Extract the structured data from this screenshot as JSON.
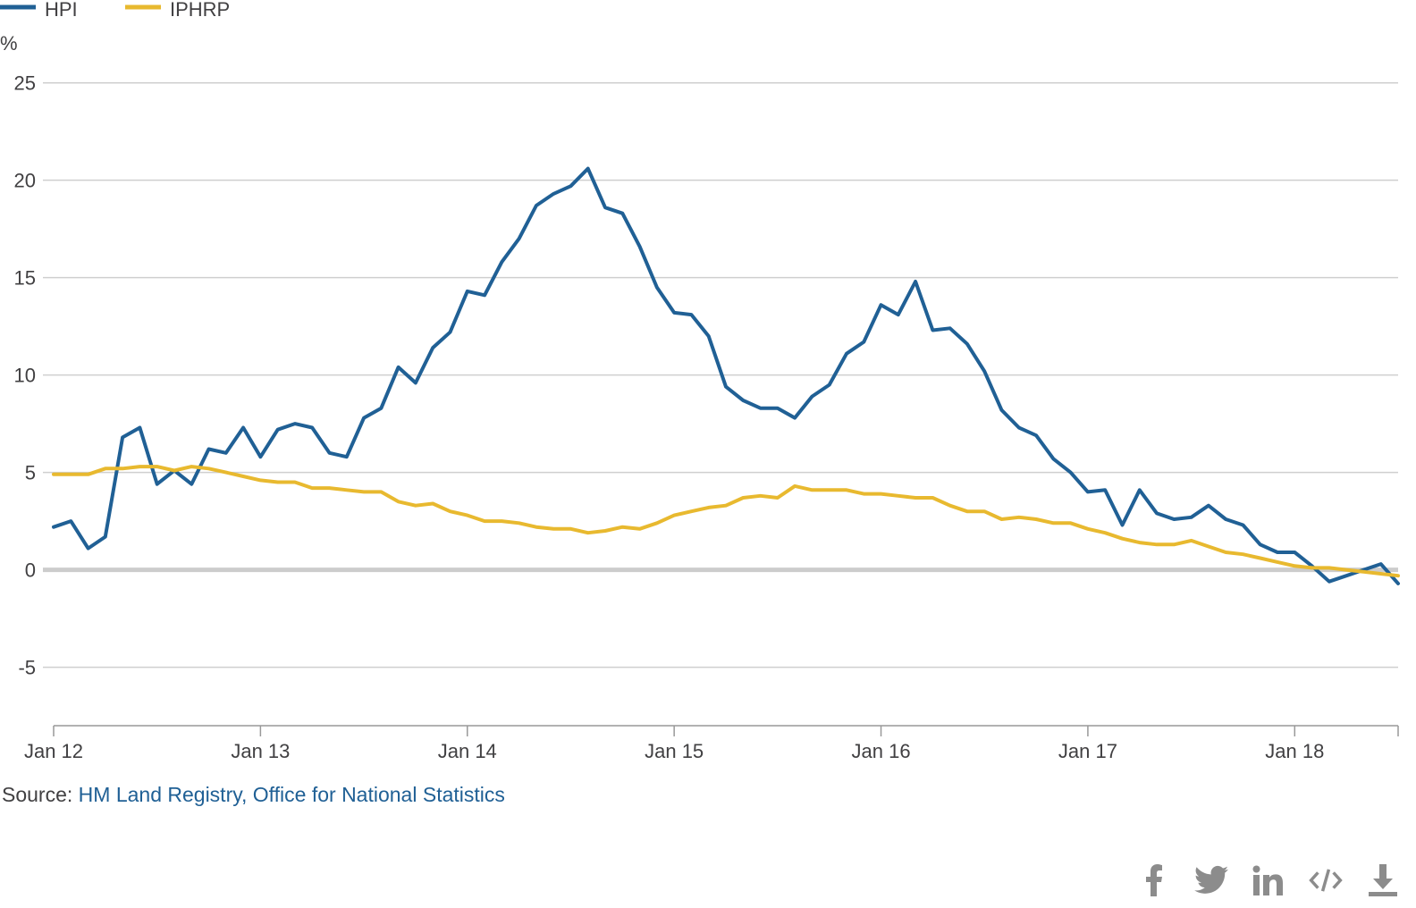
{
  "chart_data": {
    "type": "line",
    "y_unit_label": "%",
    "ylim": [
      -8,
      26.5
    ],
    "y_ticks": [
      -5,
      0,
      5,
      10,
      15,
      20,
      25
    ],
    "y_tick_labels": [
      "-5",
      "0",
      "5",
      "10",
      "15",
      "20",
      "25"
    ],
    "x_ticks": [
      0,
      12,
      24,
      36,
      48,
      60,
      72
    ],
    "x_tick_labels": [
      "Jan 12",
      "Jan 13",
      "Jan 14",
      "Jan 15",
      "Jan 16",
      "Jan 17",
      "Jan 18"
    ],
    "x_range_months": [
      0,
      78
    ],
    "x_start": "Jan 2012",
    "grid": true,
    "legend_position": "top-left",
    "series": [
      {
        "name": "HPI",
        "color": "#206095",
        "values": [
          2.2,
          2.5,
          1.1,
          1.7,
          6.8,
          7.3,
          4.4,
          5.1,
          4.4,
          6.2,
          6.0,
          7.3,
          5.8,
          7.2,
          7.5,
          7.3,
          6.0,
          5.8,
          7.8,
          8.3,
          10.4,
          9.6,
          11.4,
          12.2,
          14.3,
          14.1,
          15.8,
          17.0,
          18.7,
          19.3,
          19.7,
          20.6,
          18.6,
          18.3,
          16.6,
          14.5,
          13.2,
          13.1,
          12.0,
          9.4,
          8.7,
          8.3,
          8.3,
          7.8,
          8.9,
          9.5,
          11.1,
          11.7,
          13.6,
          13.1,
          14.8,
          12.3,
          12.4,
          11.6,
          10.2,
          8.2,
          7.3,
          6.9,
          5.7,
          5.0,
          4.0,
          4.1,
          2.3,
          4.1,
          2.9,
          2.6,
          2.7,
          3.3,
          2.6,
          2.3,
          1.3,
          0.9,
          0.9,
          0.2,
          -0.6,
          -0.3,
          0.0,
          0.3,
          -0.7
        ]
      },
      {
        "name": "IPHRP",
        "color": "#e8b92f",
        "values": [
          4.9,
          4.9,
          4.9,
          5.2,
          5.2,
          5.3,
          5.3,
          5.1,
          5.3,
          5.2,
          5.0,
          4.8,
          4.6,
          4.5,
          4.5,
          4.2,
          4.2,
          4.1,
          4.0,
          4.0,
          3.5,
          3.3,
          3.4,
          3.0,
          2.8,
          2.5,
          2.5,
          2.4,
          2.2,
          2.1,
          2.1,
          1.9,
          2.0,
          2.2,
          2.1,
          2.4,
          2.8,
          3.0,
          3.2,
          3.3,
          3.7,
          3.8,
          3.7,
          4.3,
          4.1,
          4.1,
          4.1,
          3.9,
          3.9,
          3.8,
          3.7,
          3.7,
          3.3,
          3.0,
          3.0,
          2.6,
          2.7,
          2.6,
          2.4,
          2.4,
          2.1,
          1.9,
          1.6,
          1.4,
          1.3,
          1.3,
          1.5,
          1.2,
          0.9,
          0.8,
          0.6,
          0.4,
          0.2,
          0.1,
          0.1,
          0.0,
          -0.1,
          -0.2,
          -0.3
        ]
      }
    ]
  },
  "source": {
    "label": "Source:",
    "link_text": "HM Land Registry, Office for National Statistics"
  },
  "share_icons": [
    "facebook-icon",
    "twitter-icon",
    "linkedin-icon",
    "embed-code-icon",
    "download-icon"
  ]
}
